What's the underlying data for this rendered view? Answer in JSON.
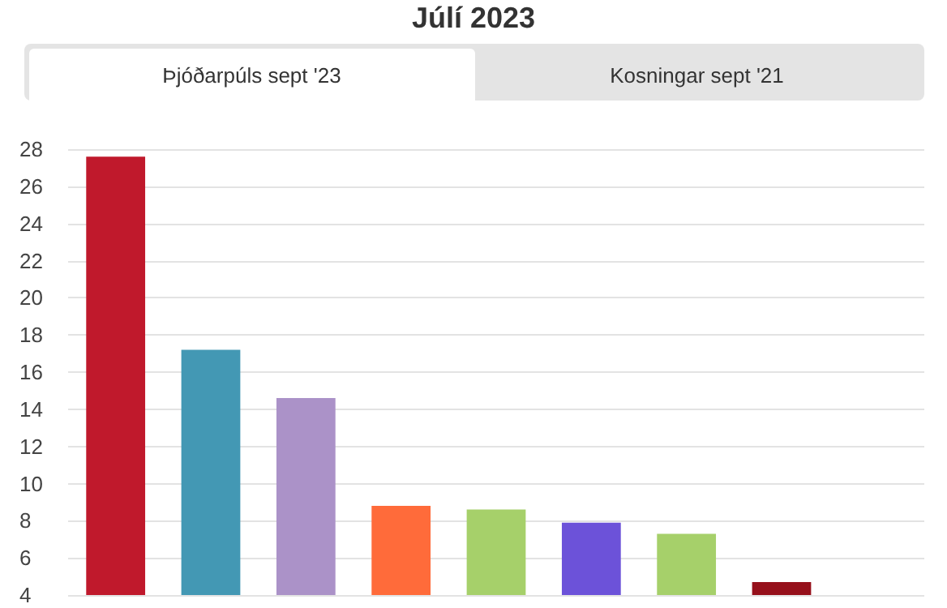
{
  "chart_data": {
    "type": "bar",
    "title": "Júlí 2023",
    "annotations": [
      "Þjóðarpúls sept '23",
      "Kosningar sept '21"
    ],
    "categories": [
      null,
      null,
      null,
      null,
      null,
      null,
      null,
      null,
      null
    ],
    "values": [
      27.6,
      17.2,
      14.6,
      8.8,
      8.6,
      7.9,
      7.3,
      4.7,
      null
    ],
    "colors": [
      "#c0192c",
      "#4398b4",
      "#ab92c8",
      "#ff6b3a",
      "#a6d06a",
      "#6c52d9",
      "#a6d06a",
      "#96101b",
      null
    ],
    "ylim": [
      4,
      28
    ],
    "yticks": [
      4,
      6,
      8,
      10,
      12,
      14,
      16,
      18,
      20,
      22,
      24,
      26,
      28
    ],
    "grid": "y"
  }
}
